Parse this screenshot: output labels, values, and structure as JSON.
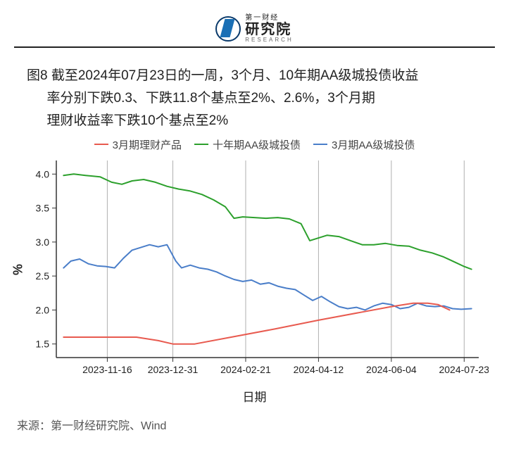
{
  "logo": {
    "top_small": "第一财经",
    "main": "研究院",
    "en": "RESEARCH"
  },
  "caption": {
    "line1": "图8 截至2024年07月23日的一周，3个月、10年期AA级城投债收益",
    "line2": "率分别下跌0.3、下跌11.8个基点至2%、2.6%，3个月期",
    "line3": "理财收益率下跌10个基点至2%"
  },
  "legend": [
    {
      "label": "3月期理财产品",
      "color": "#e85a4f"
    },
    {
      "label": "十年期AA级城投债",
      "color": "#2ca02c"
    },
    {
      "label": "3月期AA级城投债",
      "color": "#4a7ec9"
    }
  ],
  "chart": {
    "type": "line",
    "y_label": "%",
    "x_label": "日期",
    "ylim": [
      1.3,
      4.2
    ],
    "yticks": [
      1.5,
      2.0,
      2.5,
      3.0,
      3.5,
      4.0
    ],
    "x_tick_labels": [
      "2023-11-16",
      "2023-12-31",
      "2024-02-21",
      "2024-04-12",
      "2024-06-04",
      "2024-07-23"
    ],
    "x_tick_idx": [
      35,
      80,
      130,
      180,
      230,
      280
    ],
    "x_domain": [
      0,
      290
    ],
    "vgrid_idx": [
      35,
      80,
      130,
      180,
      230,
      280
    ],
    "vgrid_color": "#b0b0b0",
    "axis_color": "#333333",
    "tick_fontsize": 14,
    "line_width": 2,
    "plot_bg": "#ffffff",
    "series": {
      "wealth3m": {
        "color": "#e85a4f",
        "data": [
          [
            5,
            1.6
          ],
          [
            30,
            1.6
          ],
          [
            55,
            1.6
          ],
          [
            70,
            1.55
          ],
          [
            80,
            1.5
          ],
          [
            95,
            1.5
          ],
          [
            120,
            1.6
          ],
          [
            150,
            1.72
          ],
          [
            180,
            1.85
          ],
          [
            210,
            1.97
          ],
          [
            230,
            2.05
          ],
          [
            245,
            2.1
          ],
          [
            255,
            2.1
          ],
          [
            262,
            2.08
          ],
          [
            270,
            2.0
          ]
        ]
      },
      "aa10y": {
        "color": "#2ca02c",
        "data": [
          [
            5,
            3.98
          ],
          [
            12,
            4.0
          ],
          [
            20,
            3.98
          ],
          [
            30,
            3.96
          ],
          [
            38,
            3.88
          ],
          [
            45,
            3.85
          ],
          [
            52,
            3.9
          ],
          [
            60,
            3.92
          ],
          [
            68,
            3.88
          ],
          [
            76,
            3.82
          ],
          [
            84,
            3.78
          ],
          [
            92,
            3.75
          ],
          [
            100,
            3.7
          ],
          [
            108,
            3.62
          ],
          [
            116,
            3.52
          ],
          [
            122,
            3.35
          ],
          [
            128,
            3.37
          ],
          [
            136,
            3.36
          ],
          [
            144,
            3.35
          ],
          [
            152,
            3.36
          ],
          [
            160,
            3.34
          ],
          [
            168,
            3.27
          ],
          [
            174,
            3.02
          ],
          [
            180,
            3.06
          ],
          [
            186,
            3.1
          ],
          [
            194,
            3.08
          ],
          [
            202,
            3.02
          ],
          [
            210,
            2.96
          ],
          [
            218,
            2.96
          ],
          [
            226,
            2.98
          ],
          [
            234,
            2.95
          ],
          [
            242,
            2.94
          ],
          [
            250,
            2.88
          ],
          [
            258,
            2.84
          ],
          [
            266,
            2.78
          ],
          [
            274,
            2.7
          ],
          [
            280,
            2.64
          ],
          [
            285,
            2.6
          ]
        ]
      },
      "aa3m": {
        "color": "#4a7ec9",
        "data": [
          [
            5,
            2.62
          ],
          [
            10,
            2.72
          ],
          [
            16,
            2.75
          ],
          [
            22,
            2.68
          ],
          [
            28,
            2.65
          ],
          [
            34,
            2.64
          ],
          [
            40,
            2.62
          ],
          [
            46,
            2.76
          ],
          [
            52,
            2.88
          ],
          [
            58,
            2.92
          ],
          [
            64,
            2.96
          ],
          [
            70,
            2.93
          ],
          [
            76,
            2.96
          ],
          [
            82,
            2.72
          ],
          [
            86,
            2.62
          ],
          [
            92,
            2.66
          ],
          [
            98,
            2.62
          ],
          [
            104,
            2.6
          ],
          [
            110,
            2.56
          ],
          [
            116,
            2.5
          ],
          [
            122,
            2.45
          ],
          [
            128,
            2.42
          ],
          [
            134,
            2.44
          ],
          [
            140,
            2.38
          ],
          [
            146,
            2.4
          ],
          [
            152,
            2.35
          ],
          [
            158,
            2.32
          ],
          [
            164,
            2.3
          ],
          [
            170,
            2.22
          ],
          [
            176,
            2.14
          ],
          [
            182,
            2.2
          ],
          [
            188,
            2.12
          ],
          [
            194,
            2.05
          ],
          [
            200,
            2.02
          ],
          [
            206,
            2.04
          ],
          [
            212,
            2.0
          ],
          [
            218,
            2.06
          ],
          [
            224,
            2.1
          ],
          [
            230,
            2.08
          ],
          [
            236,
            2.02
          ],
          [
            242,
            2.04
          ],
          [
            248,
            2.1
          ],
          [
            254,
            2.06
          ],
          [
            260,
            2.05
          ],
          [
            266,
            2.06
          ],
          [
            272,
            2.02
          ],
          [
            278,
            2.01
          ],
          [
            285,
            2.02
          ]
        ]
      }
    }
  },
  "source": "来源：第一财经研究院、Wind"
}
